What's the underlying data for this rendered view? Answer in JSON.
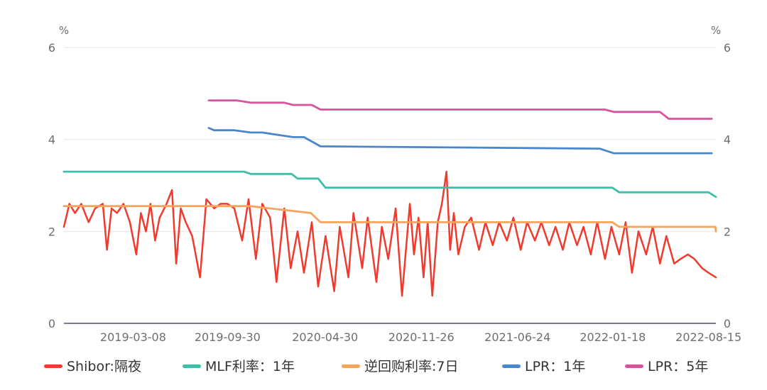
{
  "chart_data": {
    "type": "line",
    "left_unit": "%",
    "right_unit": "%",
    "ylim": [
      0,
      6
    ],
    "y_ticks": [
      "0",
      "2",
      "4",
      "6"
    ],
    "x_range": [
      "2018-10-08",
      "2022-08-31"
    ],
    "x_ticks": [
      "2019-03-08",
      "2019-09-30",
      "2020-04-30",
      "2020-11-26",
      "2021-06-24",
      "2022-01-18",
      "2022-08-15"
    ],
    "legend_position": "bottom",
    "series": [
      {
        "name": "Shibor:隔夜",
        "color": "#f03a2e",
        "x": [
          "2018-10-08",
          "2018-10-20",
          "2018-11-01",
          "2018-11-15",
          "2018-12-01",
          "2018-12-15",
          "2019-01-01",
          "2019-01-10",
          "2019-01-20",
          "2019-02-01",
          "2019-02-15",
          "2019-03-01",
          "2019-03-15",
          "2019-03-25",
          "2019-04-05",
          "2019-04-15",
          "2019-04-25",
          "2019-05-05",
          "2019-05-20",
          "2019-06-01",
          "2019-06-10",
          "2019-06-20",
          "2019-07-01",
          "2019-07-15",
          "2019-08-01",
          "2019-08-15",
          "2019-09-01",
          "2019-09-15",
          "2019-09-30",
          "2019-10-15",
          "2019-11-01",
          "2019-11-15",
          "2019-12-01",
          "2019-12-15",
          "2020-01-01",
          "2020-01-15",
          "2020-02-01",
          "2020-02-15",
          "2020-03-01",
          "2020-03-15",
          "2020-04-01",
          "2020-04-15",
          "2020-05-01",
          "2020-05-20",
          "2020-06-01",
          "2020-06-20",
          "2020-07-01",
          "2020-07-20",
          "2020-08-01",
          "2020-08-20",
          "2020-09-01",
          "2020-09-15",
          "2020-10-01",
          "2020-10-15",
          "2020-11-01",
          "2020-11-10",
          "2020-11-20",
          "2020-12-01",
          "2020-12-10",
          "2020-12-20",
          "2021-01-01",
          "2021-01-10",
          "2021-01-20",
          "2021-01-28",
          "2021-02-05",
          "2021-02-15",
          "2021-03-01",
          "2021-03-15",
          "2021-04-01",
          "2021-04-15",
          "2021-05-01",
          "2021-05-15",
          "2021-06-01",
          "2021-06-15",
          "2021-07-01",
          "2021-07-15",
          "2021-08-01",
          "2021-08-15",
          "2021-09-01",
          "2021-09-15",
          "2021-10-01",
          "2021-10-15",
          "2021-11-01",
          "2021-11-15",
          "2021-12-01",
          "2021-12-15",
          "2022-01-01",
          "2022-01-15",
          "2022-02-01",
          "2022-02-15",
          "2022-03-01",
          "2022-03-15",
          "2022-04-01",
          "2022-04-15",
          "2022-05-01",
          "2022-05-15",
          "2022-06-01",
          "2022-06-15",
          "2022-07-01",
          "2022-07-15",
          "2022-08-01",
          "2022-08-15",
          "2022-08-31"
        ],
        "values": [
          2.1,
          2.6,
          2.4,
          2.6,
          2.2,
          2.5,
          2.6,
          1.6,
          2.5,
          2.4,
          2.6,
          2.2,
          1.5,
          2.4,
          2.0,
          2.6,
          1.8,
          2.3,
          2.6,
          2.9,
          1.3,
          2.5,
          2.2,
          1.9,
          1.0,
          2.7,
          2.5,
          2.6,
          2.6,
          2.5,
          1.8,
          2.7,
          1.4,
          2.6,
          2.3,
          0.9,
          2.5,
          1.2,
          2.0,
          1.1,
          2.2,
          0.8,
          1.9,
          0.7,
          2.1,
          1.0,
          2.4,
          1.2,
          2.3,
          0.9,
          2.1,
          1.4,
          2.5,
          0.6,
          2.6,
          1.5,
          2.3,
          1.0,
          2.2,
          0.6,
          2.2,
          2.6,
          3.3,
          1.6,
          2.4,
          1.5,
          2.1,
          2.3,
          1.6,
          2.2,
          1.7,
          2.2,
          1.8,
          2.3,
          1.6,
          2.2,
          1.8,
          2.2,
          1.7,
          2.1,
          1.6,
          2.2,
          1.7,
          2.1,
          1.5,
          2.2,
          1.4,
          2.1,
          1.5,
          2.2,
          1.1,
          2.0,
          1.5,
          2.1,
          1.3,
          1.9,
          1.3,
          1.4,
          1.5,
          1.4,
          1.2,
          1.1,
          1.0
        ]
      },
      {
        "name": "MLF利率：1年",
        "color": "#3bbfa7",
        "x": [
          "2018-10-08",
          "2019-11-05",
          "2019-11-20",
          "2020-02-17",
          "2020-03-01",
          "2020-04-15",
          "2020-05-01",
          "2022-01-17",
          "2022-02-01",
          "2022-08-15",
          "2022-08-31"
        ],
        "values": [
          3.3,
          3.3,
          3.25,
          3.25,
          3.15,
          3.15,
          2.95,
          2.95,
          2.85,
          2.85,
          2.75
        ]
      },
      {
        "name": "逆回购利率:7日",
        "color": "#f5a45a",
        "x": [
          "2018-10-08",
          "2019-11-18",
          "2020-01-01",
          "2020-03-30",
          "2020-04-20",
          "2022-01-17",
          "2022-02-01",
          "2022-08-30",
          "2022-08-31"
        ],
        "values": [
          2.55,
          2.55,
          2.5,
          2.4,
          2.2,
          2.2,
          2.1,
          2.1,
          2.0
        ]
      },
      {
        "name": "LPR：1年",
        "color": "#4a86cc",
        "x": [
          "2019-08-20",
          "2019-09-01",
          "2019-09-20",
          "2019-10-15",
          "2019-11-20",
          "2019-12-15",
          "2020-02-20",
          "2020-03-15",
          "2020-04-20",
          "2021-12-20",
          "2022-01-20",
          "2022-08-22"
        ],
        "values": [
          4.25,
          4.2,
          4.2,
          4.2,
          4.15,
          4.15,
          4.05,
          4.05,
          3.85,
          3.8,
          3.7,
          3.7
        ]
      },
      {
        "name": "LPR：5年",
        "color": "#d9529f",
        "x": [
          "2019-08-20",
          "2019-10-20",
          "2019-11-20",
          "2020-02-01",
          "2020-02-20",
          "2020-04-01",
          "2020-04-20",
          "2022-01-01",
          "2022-01-20",
          "2022-05-01",
          "2022-05-20",
          "2022-08-22"
        ],
        "values": [
          4.85,
          4.85,
          4.8,
          4.8,
          4.75,
          4.75,
          4.65,
          4.65,
          4.6,
          4.6,
          4.45,
          4.45
        ]
      }
    ]
  }
}
